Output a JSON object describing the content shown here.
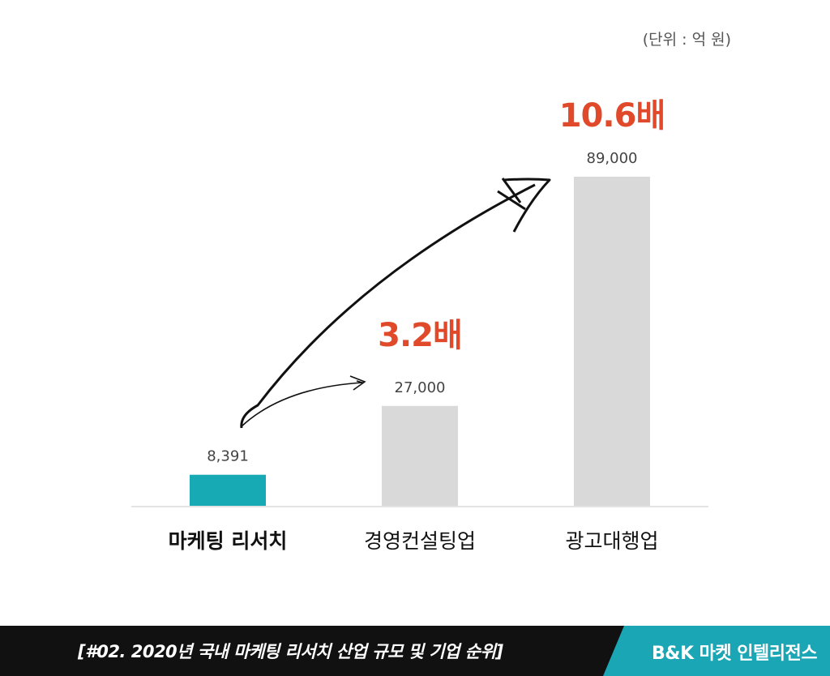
{
  "unit_label": "(단위 : 억 원)",
  "colors": {
    "highlight": "#17a9b4",
    "bar": "#d9d9d9",
    "multiplier": "#e04a2a",
    "footer_bg": "#111111",
    "brand_bg": "#1aa6b5"
  },
  "chart_data": {
    "type": "bar",
    "categories": [
      "마케팅 리서치",
      "경영컨설팅업",
      "광고대행업"
    ],
    "values": [
      8391,
      27000,
      89000
    ],
    "value_labels": [
      "8,391",
      "27,000",
      "89,000"
    ],
    "highlight_index": 0,
    "annotations": [
      {
        "text": "3.2배",
        "target_index": 1
      },
      {
        "text": "10.6배",
        "target_index": 2
      }
    ],
    "ylim": [
      0,
      89000
    ],
    "grid": false
  },
  "footer": {
    "title": "[#02. 2020년 국내 마케팅 리서치 산업 규모 및 기업 순위]",
    "brand": "B&K 마켓 인텔리전스"
  }
}
